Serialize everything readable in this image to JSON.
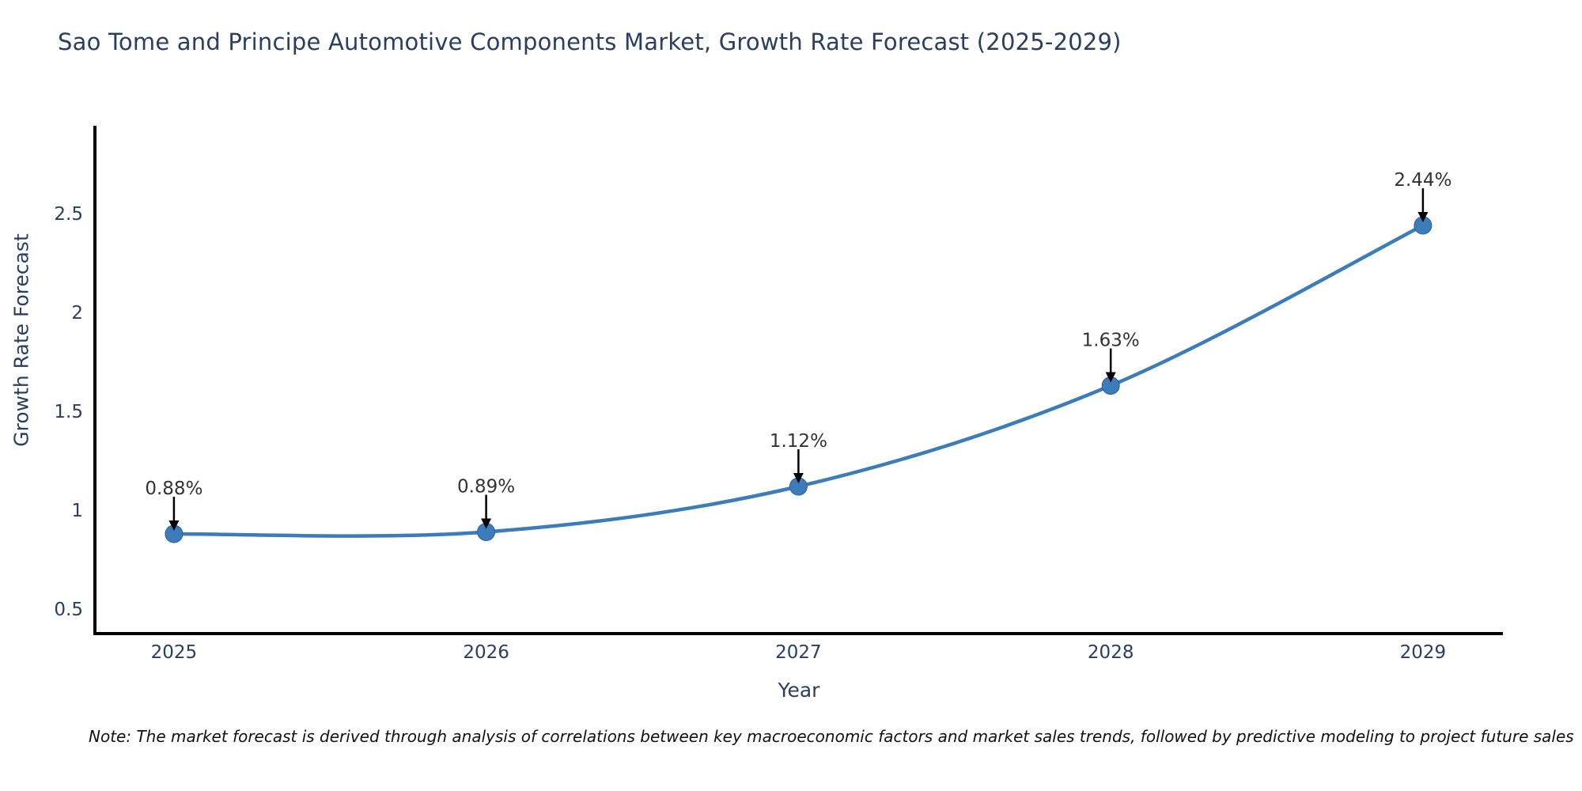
{
  "note": "Note: The market forecast is derived through analysis of correlations between key macroeconomic factors and market sales trends, followed by predictive modeling to project future sales",
  "colors": {
    "title": "#2a3f5f",
    "tick": "#2a3f5f",
    "axis_title": "#2a3f5f",
    "annotation_text": "#333333",
    "axis_line": "#000000",
    "line": "#3d7cba",
    "marker": "#3d7cba",
    "marker_edge": "#2e6195",
    "arrow": "#000000",
    "background": "#ffffff"
  },
  "chart_data": {
    "type": "line",
    "title": "Sao Tome and Principe Automotive Components Market, Growth Rate Forecast (2025-2029)",
    "xlabel": "Year",
    "ylabel": "Growth Rate Forecast",
    "x": [
      2025,
      2026,
      2027,
      2028,
      2029
    ],
    "values": [
      0.88,
      0.89,
      1.12,
      1.63,
      2.44
    ],
    "point_labels": [
      "0.88%",
      "0.89%",
      "1.12%",
      "1.63%",
      "2.44%"
    ],
    "x_tick_labels": [
      "2025",
      "2026",
      "2027",
      "2028",
      "2029"
    ],
    "y_ticks": [
      0.5,
      1,
      1.5,
      2,
      2.5
    ],
    "y_tick_labels": [
      "0.5",
      "1",
      "1.5",
      "2",
      "2.5"
    ],
    "xlim": [
      2024.747,
      2029.256
    ],
    "ylim": [
      0.376,
      2.944
    ],
    "line_shape": "spline",
    "grid": false,
    "legend": false,
    "annotations": "each point labeled with percent value and a black arrow pointing down to the marker"
  }
}
